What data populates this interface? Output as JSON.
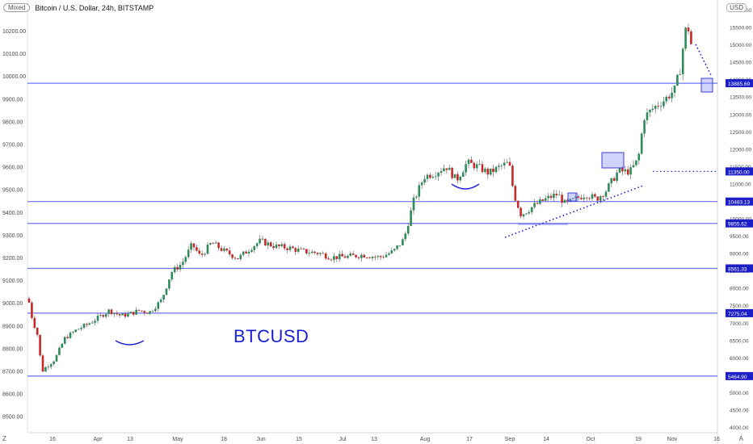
{
  "header": {
    "scale_badge": "Mixed",
    "symbol": "Bitcoin / U.S. Dollar, 24h, BITSTAMP",
    "currency": "USD"
  },
  "annotation_text": "BTCUSD",
  "corner_left": "Z",
  "corner_right": "A",
  "chart_data": {
    "type": "candlestick",
    "title": "Bitcoin / U.S. Dollar, 24h, BITSTAMP",
    "left_axis": {
      "ticks": [
        "10200.00",
        "10100.00",
        "10000.00",
        "9900.00",
        "9800.00",
        "9700.00",
        "9600.00",
        "9500.00",
        "9400.00",
        "9300.00",
        "9200.00",
        "9100.00",
        "9000.00",
        "8900.00",
        "8800.00",
        "8700.00",
        "8600.00",
        "8500.00"
      ],
      "range": [
        8420,
        10310
      ]
    },
    "right_axis": {
      "unit": "USD",
      "ticks": [
        "16000.00",
        "15500.00",
        "15000.00",
        "14500.00",
        "14000.00",
        "13500.00",
        "13000.00",
        "12500.00",
        "12000.00",
        "11500.00",
        "11000.00",
        "10500.00",
        "10000.00",
        "9500.00",
        "9000.00",
        "8500.00",
        "8000.00",
        "7500.00",
        "7000.00",
        "6500.00",
        "6000.00",
        "5500.00",
        "5000.00",
        "4500.00",
        "4000.00"
      ],
      "range": [
        3900,
        16250
      ]
    },
    "x_ticks": [
      "16",
      "Apr",
      "13",
      "May",
      "18",
      "Jun",
      "15",
      "Jul",
      "13",
      "Aug",
      "17",
      "Sep",
      "14",
      "Oct",
      "19",
      "Nov",
      "16"
    ],
    "levels": [
      {
        "label": "13885.69",
        "value": 13885.69
      },
      {
        "label": "10483.13",
        "value": 10483.13
      },
      {
        "label": "9855.62",
        "value": 9855.62
      },
      {
        "label": "8561.33",
        "value": 8561.33
      },
      {
        "label": "7275.04",
        "value": 7275.04
      },
      {
        "label": "5464.90",
        "value": 5464.9
      }
    ],
    "price_labels": [
      {
        "label": "11350.00",
        "value": 11350.0
      }
    ],
    "key_closes": [
      {
        "date": "Mar 12",
        "value": 8590
      },
      {
        "date": "Mar 13",
        "value": 8575
      },
      {
        "date": "Apr 10",
        "value": 8860
      },
      {
        "date": "May 01",
        "value": 9180
      },
      {
        "date": "May 07",
        "value": 9350
      },
      {
        "date": "Jun 01",
        "value": 9340
      },
      {
        "date": "Jul 01",
        "value": 9230
      },
      {
        "date": "Jul 26",
        "value": 9600
      },
      {
        "date": "Aug 17",
        "value": 9710
      },
      {
        "date": "Sep 03",
        "value": 10170
      },
      {
        "date": "Oct 10",
        "value": 11350
      },
      {
        "date": "Oct 21",
        "value": 12800
      },
      {
        "date": "Nov 06",
        "value": 15580
      }
    ],
    "grid": false
  }
}
